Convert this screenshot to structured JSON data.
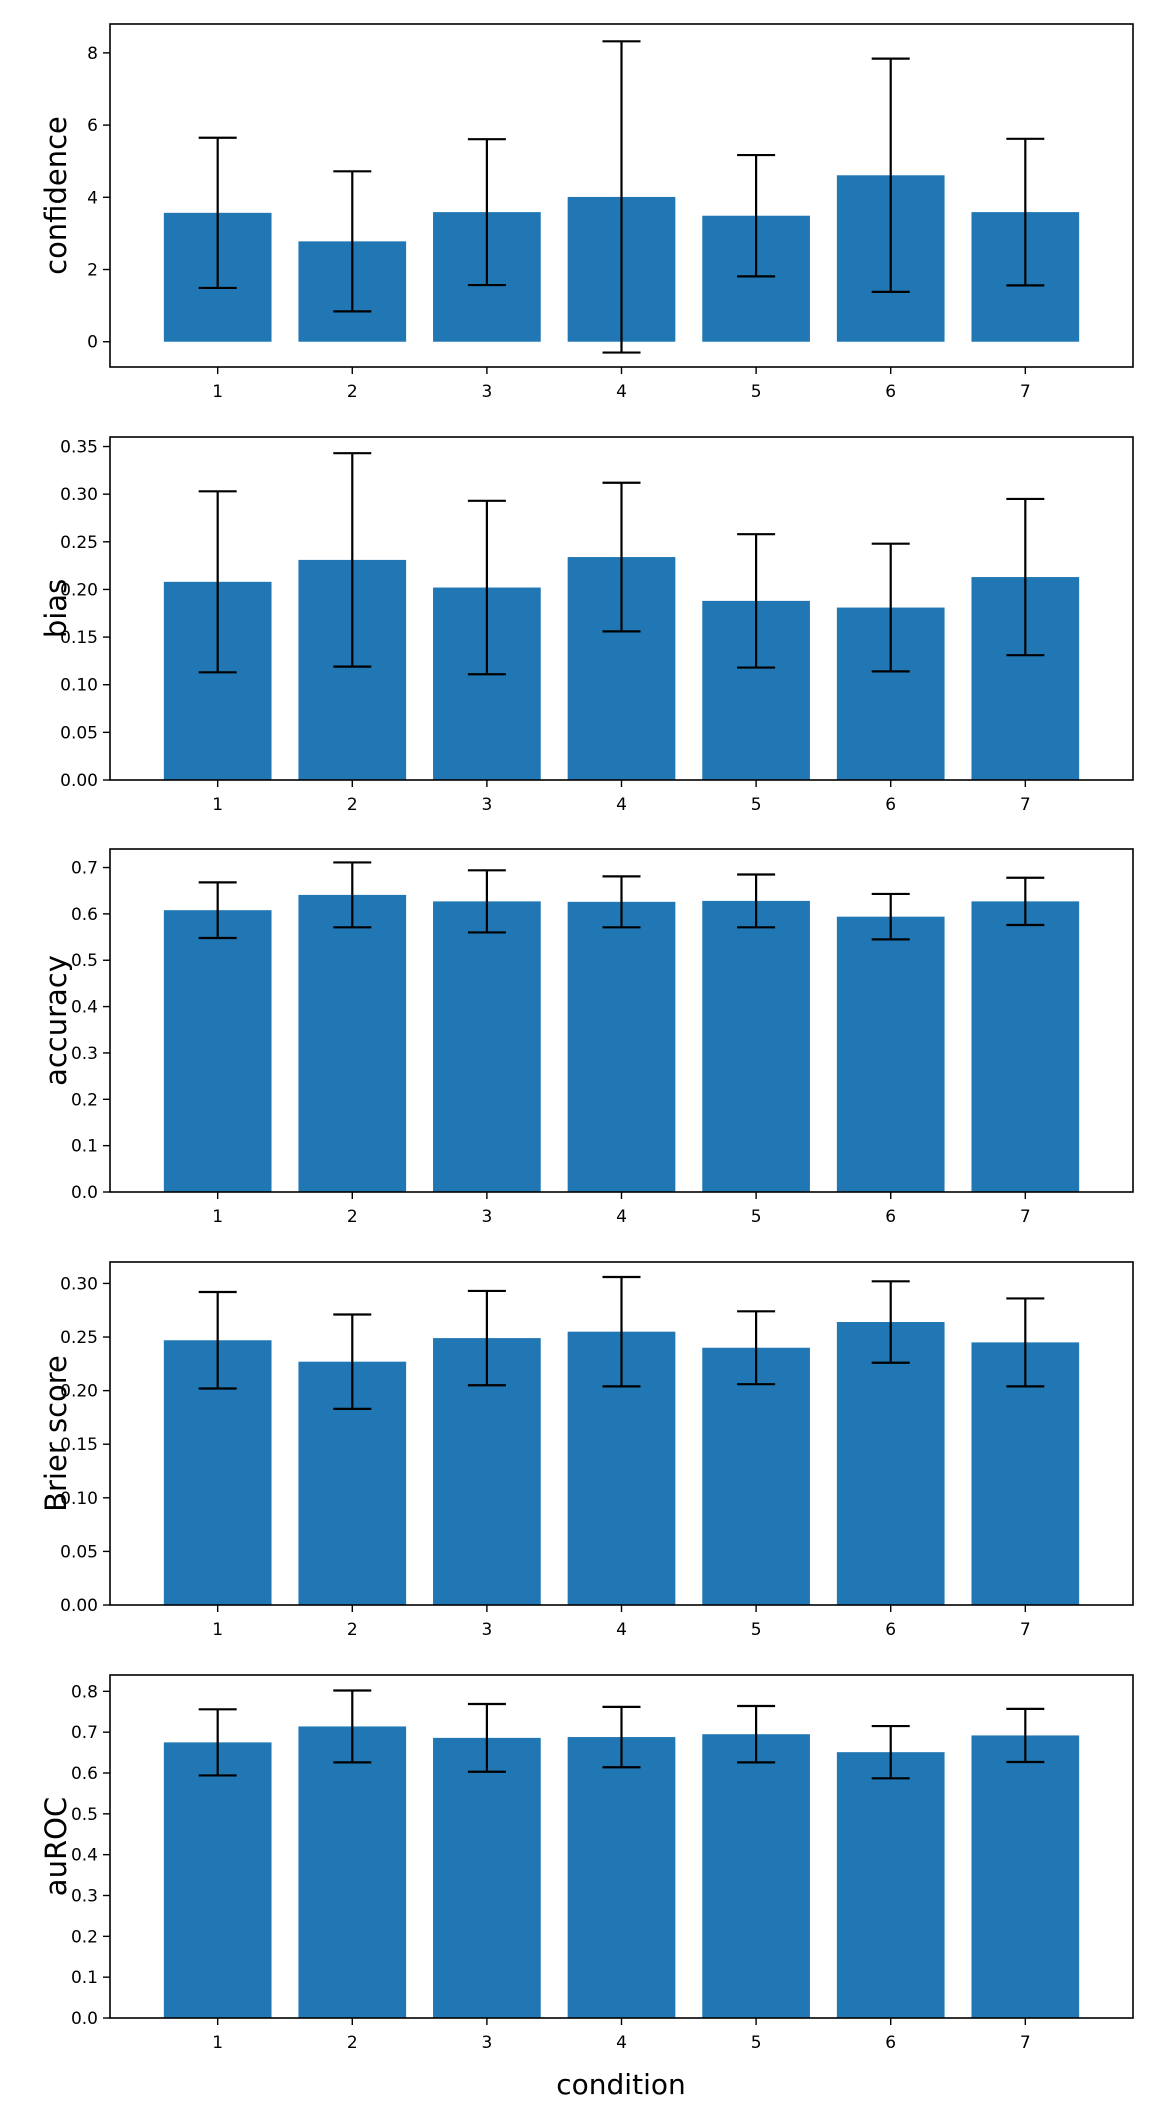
{
  "figure": {
    "xlabel": "condition"
  },
  "style": {
    "bar_color": "#2077b4",
    "error_color": "#000000",
    "axes_color": "#000000"
  },
  "chart_data": [
    {
      "type": "bar",
      "categories": [
        "1",
        "2",
        "3",
        "4",
        "5",
        "6",
        "7"
      ],
      "ylabel": "confidence",
      "xlabel": "",
      "ylim": [
        -0.7,
        8.8
      ],
      "yticks": [
        0,
        2,
        4,
        6,
        8
      ],
      "ytick_labels": [
        "0",
        "2",
        "4",
        "6",
        "8"
      ],
      "values": [
        3.57,
        2.78,
        3.59,
        4.01,
        3.49,
        4.61,
        3.59
      ],
      "error": [
        2.08,
        1.94,
        2.02,
        4.31,
        1.68,
        3.23,
        2.03
      ]
    },
    {
      "type": "bar",
      "categories": [
        "1",
        "2",
        "3",
        "4",
        "5",
        "6",
        "7"
      ],
      "ylabel": "bias",
      "xlabel": "",
      "ylim": [
        0,
        0.36
      ],
      "yticks": [
        0,
        0.05,
        0.1,
        0.15,
        0.2,
        0.25,
        0.3,
        0.35
      ],
      "ytick_labels": [
        "0.00",
        "0.05",
        "0.10",
        "0.15",
        "0.20",
        "0.25",
        "0.30",
        "0.35"
      ],
      "values": [
        0.208,
        0.231,
        0.202,
        0.234,
        0.188,
        0.181,
        0.213
      ],
      "error": [
        0.095,
        0.112,
        0.091,
        0.078,
        0.07,
        0.067,
        0.082
      ]
    },
    {
      "type": "bar",
      "categories": [
        "1",
        "2",
        "3",
        "4",
        "5",
        "6",
        "7"
      ],
      "ylabel": "accuracy",
      "xlabel": "",
      "ylim": [
        0,
        0.74
      ],
      "yticks": [
        0,
        0.1,
        0.2,
        0.3,
        0.4,
        0.5,
        0.6,
        0.7
      ],
      "ytick_labels": [
        "0.0",
        "0.1",
        "0.2",
        "0.3",
        "0.4",
        "0.5",
        "0.6",
        "0.7"
      ],
      "values": [
        0.608,
        0.641,
        0.627,
        0.626,
        0.628,
        0.594,
        0.627
      ],
      "error": [
        0.06,
        0.07,
        0.067,
        0.055,
        0.057,
        0.049,
        0.051
      ]
    },
    {
      "type": "bar",
      "categories": [
        "1",
        "2",
        "3",
        "4",
        "5",
        "6",
        "7"
      ],
      "ylabel": "Brier score",
      "xlabel": "",
      "ylim": [
        0,
        0.32
      ],
      "yticks": [
        0,
        0.05,
        0.1,
        0.15,
        0.2,
        0.25,
        0.3
      ],
      "ytick_labels": [
        "0.00",
        "0.05",
        "0.10",
        "0.15",
        "0.20",
        "0.25",
        "0.30"
      ],
      "values": [
        0.247,
        0.227,
        0.249,
        0.255,
        0.24,
        0.264,
        0.245
      ],
      "error": [
        0.045,
        0.044,
        0.044,
        0.051,
        0.034,
        0.038,
        0.041
      ]
    },
    {
      "type": "bar",
      "categories": [
        "1",
        "2",
        "3",
        "4",
        "5",
        "6",
        "7"
      ],
      "ylabel": "auROC",
      "xlabel": "",
      "ylim": [
        0,
        0.84
      ],
      "yticks": [
        0,
        0.1,
        0.2,
        0.3,
        0.4,
        0.5,
        0.6,
        0.7,
        0.8
      ],
      "ytick_labels": [
        "0.0",
        "0.1",
        "0.2",
        "0.3",
        "0.4",
        "0.5",
        "0.6",
        "0.7",
        "0.8"
      ],
      "values": [
        0.675,
        0.714,
        0.686,
        0.688,
        0.695,
        0.651,
        0.692
      ],
      "error": [
        0.081,
        0.088,
        0.083,
        0.074,
        0.069,
        0.064,
        0.065
      ]
    }
  ]
}
